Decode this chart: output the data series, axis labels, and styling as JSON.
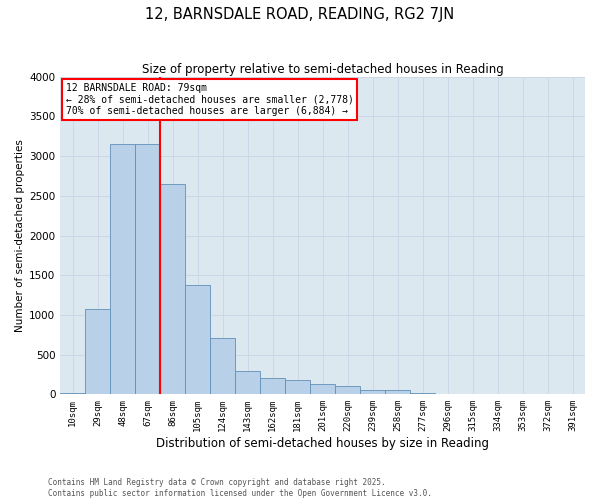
{
  "title": "12, BARNSDALE ROAD, READING, RG2 7JN",
  "subtitle": "Size of property relative to semi-detached houses in Reading",
  "xlabel": "Distribution of semi-detached houses by size in Reading",
  "ylabel": "Number of semi-detached properties",
  "categories": [
    "10sqm",
    "29sqm",
    "48sqm",
    "67sqm",
    "86sqm",
    "105sqm",
    "124sqm",
    "143sqm",
    "162sqm",
    "181sqm",
    "201sqm",
    "220sqm",
    "239sqm",
    "258sqm",
    "277sqm",
    "296sqm",
    "315sqm",
    "334sqm",
    "353sqm",
    "372sqm",
    "391sqm"
  ],
  "values": [
    20,
    1075,
    3150,
    3150,
    2650,
    1375,
    710,
    300,
    200,
    175,
    125,
    100,
    60,
    50,
    15,
    10,
    5,
    2,
    0,
    0,
    0
  ],
  "bar_color": "#b8d0e8",
  "bar_edge_color": "#6090b8",
  "vline_x_index": 3.5,
  "vline_color": "red",
  "annotation_title": "12 BARNSDALE ROAD: 79sqm",
  "annotation_line1": "← 28% of semi-detached houses are smaller (2,778)",
  "annotation_line2": "70% of semi-detached houses are larger (6,884) →",
  "ylim": [
    0,
    4000
  ],
  "yticks": [
    0,
    500,
    1000,
    1500,
    2000,
    2500,
    3000,
    3500,
    4000
  ],
  "grid_color": "#ccd8e8",
  "background_color": "#dce8f0",
  "footer_line1": "Contains HM Land Registry data © Crown copyright and database right 2025.",
  "footer_line2": "Contains public sector information licensed under the Open Government Licence v3.0."
}
